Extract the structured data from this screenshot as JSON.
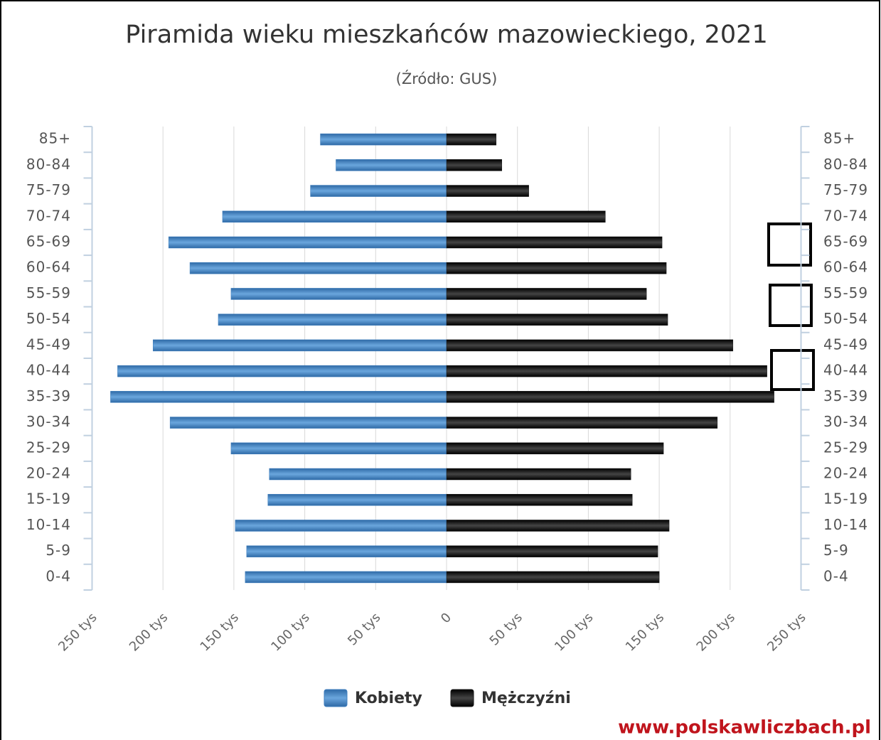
{
  "chart_data": {
    "type": "pyramid",
    "title": "Piramida wieku mieszkańców mazowieckiego, 2021",
    "subtitle": "(Źródło: GUS)",
    "source": "www.polskawliczbach.pl",
    "categories": [
      "85+",
      "80-84",
      "75-79",
      "70-74",
      "65-69",
      "60-64",
      "55-59",
      "50-54",
      "45-49",
      "40-44",
      "35-39",
      "30-34",
      "25-29",
      "20-24",
      "15-19",
      "10-14",
      "5-9",
      "0-4"
    ],
    "series": [
      {
        "name": "Kobiety",
        "color": "#3f7fbf",
        "side": "left",
        "values": [
          89,
          78,
          96,
          158,
          196,
          181,
          152,
          161,
          207,
          232,
          237,
          195,
          152,
          125,
          126,
          149,
          141,
          142
        ]
      },
      {
        "name": "Mężczyźni",
        "color": "#1a1a1a",
        "side": "right",
        "values": [
          35,
          39,
          58,
          112,
          152,
          155,
          141,
          156,
          202,
          226,
          231,
          191,
          153,
          130,
          131,
          157,
          149,
          150
        ]
      }
    ],
    "xlim": [
      0,
      250
    ],
    "xticks": [
      0,
      {
        "value": 50,
        "label": "50 tys"
      },
      {
        "value": 100,
        "label": "100 tys"
      },
      {
        "value": 150,
        "label": "150 tys"
      },
      {
        "value": 200,
        "label": "200 tys"
      },
      {
        "value": 250,
        "label": "250 tys"
      }
    ],
    "grid": true,
    "legend": "bottom"
  }
}
